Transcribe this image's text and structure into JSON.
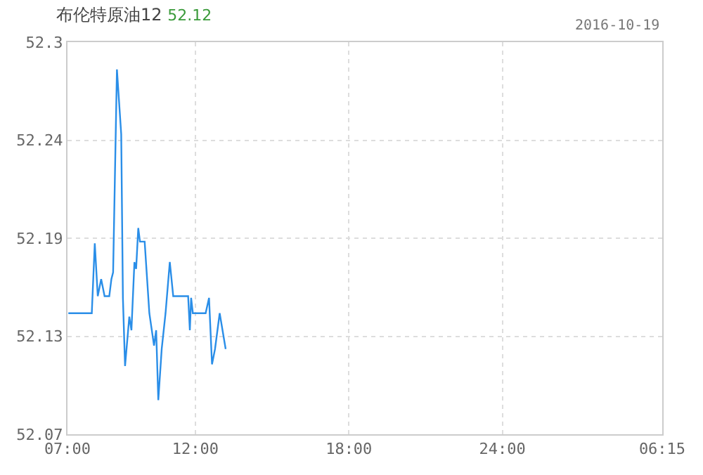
{
  "chart_data": {
    "type": "line",
    "title": "布伦特原油12",
    "subtitle": "52.12",
    "annotations": [
      "2016-10-19"
    ],
    "x": [
      "2016-10-19T07:02",
      "2016-10-19T07:57",
      "2016-10-19T08:04",
      "2016-10-19T08:11",
      "2016-10-19T08:19",
      "2016-10-19T08:27",
      "2016-10-19T08:38",
      "2016-10-19T08:43",
      "2016-10-19T08:47",
      "2016-10-19T08:56",
      "2016-10-19T09:06",
      "2016-10-19T09:10",
      "2016-10-19T09:15",
      "2016-10-19T09:25",
      "2016-10-19T09:30",
      "2016-10-19T09:37",
      "2016-10-19T09:41",
      "2016-10-19T09:46",
      "2016-10-19T09:50",
      "2016-10-19T10:01",
      "2016-10-19T10:12",
      "2016-10-19T10:23",
      "2016-10-19T10:28",
      "2016-10-19T10:33",
      "2016-10-19T10:41",
      "2016-10-19T10:50",
      "2016-10-19T11:00",
      "2016-10-19T11:08",
      "2016-10-19T11:43",
      "2016-10-19T11:47",
      "2016-10-19T11:50",
      "2016-10-19T11:54",
      "2016-10-19T12:24",
      "2016-10-19T12:32",
      "2016-10-19T12:39",
      "2016-10-19T12:46",
      "2016-10-19T12:57",
      "2016-10-19T13:11"
    ],
    "series": [
      {
        "color": "#2a8ee8",
        "values": [
          52.141,
          52.141,
          52.182,
          52.151,
          52.161,
          52.151,
          52.151,
          52.161,
          52.165,
          52.284,
          52.246,
          52.15,
          52.11,
          52.139,
          52.131,
          52.171,
          52.167,
          52.191,
          52.183,
          52.183,
          52.141,
          52.122,
          52.131,
          52.09,
          52.12,
          52.141,
          52.171,
          52.151,
          52.151,
          52.131,
          52.15,
          52.141,
          52.141,
          52.15,
          52.111,
          52.12,
          52.141,
          52.12
        ]
      }
    ],
    "xlim": [
      "2016-10-19T07:00",
      "2016-10-20T06:15"
    ],
    "xticks": [
      {
        "value": "2016-10-19T07:00",
        "label": "07:00"
      },
      {
        "value": "2016-10-19T12:00",
        "label": "12:00"
      },
      {
        "value": "2016-10-19T18:00",
        "label": "18:00"
      },
      {
        "value": "2016-10-20T00:00",
        "label": "24:00"
      },
      {
        "value": "2016-10-20T06:15",
        "label": "06:15"
      }
    ],
    "ylim": [
      52.07,
      52.3
    ],
    "yticks": [
      {
        "value": 52.07,
        "label": "52.07"
      },
      {
        "value": 52.1275,
        "label": "52.13"
      },
      {
        "value": 52.185,
        "label": "52.19"
      },
      {
        "value": 52.2425,
        "label": "52.24"
      },
      {
        "value": 52.3,
        "label": "52.3"
      }
    ],
    "grid": true,
    "marker": "none",
    "line_style": "solid"
  }
}
